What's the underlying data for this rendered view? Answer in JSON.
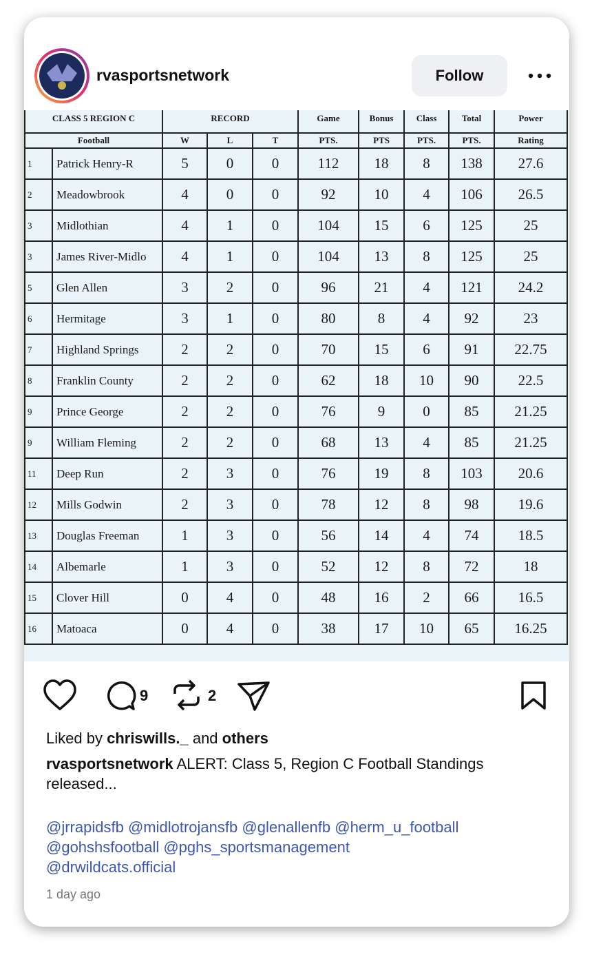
{
  "header": {
    "username": "rvasportsnetwork",
    "follow": "Follow"
  },
  "table": {
    "group_headers": [
      "CLASS 5 REGION C",
      "RECORD",
      "Game",
      "Bonus",
      "Class",
      "Total",
      "Power"
    ],
    "column_headers": [
      "Football",
      "W",
      "L",
      "T",
      "PTS.",
      "PTS",
      "PTS.",
      "PTS.",
      "Rating"
    ],
    "rows": [
      [
        1,
        "Patrick Henry-R",
        5,
        0,
        0,
        112,
        18,
        8,
        138,
        27.6
      ],
      [
        2,
        "Meadowbrook",
        4,
        0,
        0,
        92,
        10,
        4,
        106,
        26.5
      ],
      [
        3,
        "Midlothian",
        4,
        1,
        0,
        104,
        15,
        6,
        125,
        25
      ],
      [
        3,
        "James River-Midlo",
        4,
        1,
        0,
        104,
        13,
        8,
        125,
        25
      ],
      [
        5,
        "Glen Allen",
        3,
        2,
        0,
        96,
        21,
        4,
        121,
        24.2
      ],
      [
        6,
        "Hermitage",
        3,
        1,
        0,
        80,
        8,
        4,
        92,
        23
      ],
      [
        7,
        "Highland Springs",
        2,
        2,
        0,
        70,
        15,
        6,
        91,
        22.75
      ],
      [
        8,
        "Franklin County",
        2,
        2,
        0,
        62,
        18,
        10,
        90,
        22.5
      ],
      [
        9,
        "Prince George",
        2,
        2,
        0,
        76,
        9,
        0,
        85,
        21.25
      ],
      [
        9,
        "William Fleming",
        2,
        2,
        0,
        68,
        13,
        4,
        85,
        21.25
      ],
      [
        11,
        "Deep Run",
        2,
        3,
        0,
        76,
        19,
        8,
        103,
        20.6
      ],
      [
        12,
        "Mills Godwin",
        2,
        3,
        0,
        78,
        12,
        8,
        98,
        19.6
      ],
      [
        13,
        "Douglas Freeman",
        1,
        3,
        0,
        56,
        14,
        4,
        74,
        18.5
      ],
      [
        14,
        "Albemarle",
        1,
        3,
        0,
        52,
        12,
        8,
        72,
        18
      ],
      [
        15,
        "Clover Hill",
        0,
        4,
        0,
        48,
        16,
        2,
        66,
        16.5
      ],
      [
        16,
        "Matoaca",
        0,
        4,
        0,
        38,
        17,
        10,
        65,
        16.25
      ]
    ]
  },
  "actions": {
    "comments": 9,
    "reposts": 2
  },
  "likes": {
    "prefix": "Liked by",
    "user": "chriswills._",
    "middle": "and",
    "others": "others"
  },
  "caption": {
    "user": "rvasportsnetwork",
    "text": "ALERT: Class 5, Region C Football Standings released..."
  },
  "hashtags": [
    [
      "@jrrapidsfb",
      "@midlotrojansfb",
      "@glenallenfb",
      "@herm_u_football"
    ],
    [
      "@gohshsfootball",
      "@pghs_sportsmanagement"
    ],
    [
      "@drwildcats.official"
    ]
  ],
  "time": "1 day ago"
}
